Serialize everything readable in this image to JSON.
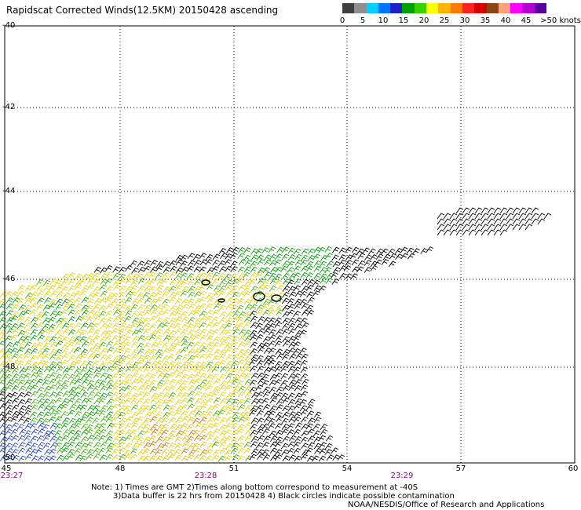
{
  "title": "Rapidscat Corrected Winds(12.5KM) 20150428 ascending",
  "color_scale": {
    "labels": [
      "0",
      "5",
      "10",
      "15",
      "20",
      "25",
      "30",
      "35",
      "40",
      "45",
      ">50 knots"
    ],
    "colors": [
      "#3f3f3f",
      "#8f8f8f",
      "#00cfff",
      "#0073ff",
      "#1f1fc8",
      "#00a000",
      "#39d400",
      "#ffff00",
      "#ffb400",
      "#ff7800",
      "#ff2020",
      "#d80000",
      "#8b4513",
      "#ffa07a",
      "#ff00ff",
      "#b400d0",
      "#5a00a0"
    ]
  },
  "axes": {
    "lat_labels": [
      "-40",
      "-42",
      "-44",
      "-46",
      "-48",
      "-50"
    ],
    "lon_labels": [
      "45",
      "48",
      "51",
      "54",
      "57",
      "60"
    ]
  },
  "times": [
    "23:27",
    "23:28",
    "23:29"
  ],
  "notes": {
    "line1": "Note: 1) Times are GMT 2)Times along bottom correspond to measurement at -40S",
    "line2": "3)Data buffer is 22 hrs from 20150428 4) Black circles indicate possible contamination",
    "line3": "NOAA/NESDIS/Office of Research and Applications"
  }
}
